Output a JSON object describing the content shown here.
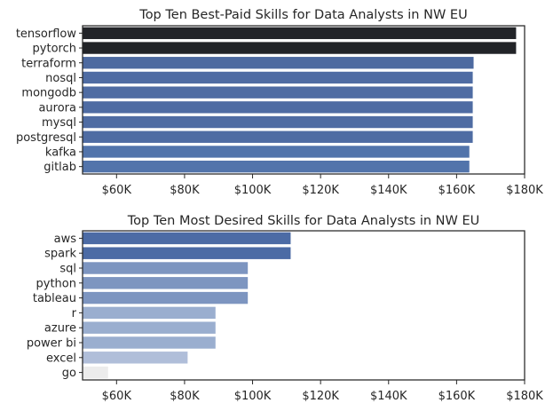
{
  "chart_data": [
    {
      "type": "bar",
      "orientation": "horizontal",
      "title": "Top Ten Best-Paid Skills for Data Analysts in NW EU",
      "xlabel": "",
      "ylabel": "",
      "xlim": [
        50000,
        180000
      ],
      "x_ticks": [
        {
          "value": 60000,
          "label": "$60K"
        },
        {
          "value": 80000,
          "label": "$80K"
        },
        {
          "value": 100000,
          "label": "$100K"
        },
        {
          "value": 120000,
          "label": "$120K"
        },
        {
          "value": 140000,
          "label": "$140K"
        },
        {
          "value": 160000,
          "label": "$160K"
        },
        {
          "value": 180000,
          "label": "$180K"
        }
      ],
      "categories": [
        "tensorflow",
        "pytorch",
        "terraform",
        "nosql",
        "mongodb",
        "aurora",
        "mysql",
        "postgresql",
        "kafka",
        "gitlab"
      ],
      "values": [
        177500,
        177500,
        165000,
        164750,
        164750,
        164750,
        164750,
        164750,
        163750,
        163750
      ],
      "colors": [
        "#222428",
        "#222428",
        "#4d6aa0",
        "#4f6ca3",
        "#4f6ca3",
        "#4f6ca3",
        "#4f6ca3",
        "#4f6ca3",
        "#5274ab",
        "#5274ab"
      ],
      "grid": false,
      "legend": "none"
    },
    {
      "type": "bar",
      "orientation": "horizontal",
      "title": "Top Ten Most Desired Skills for Data Analysts in NW EU",
      "xlabel": "",
      "ylabel": "",
      "xlim": [
        50000,
        180000
      ],
      "x_ticks": [
        {
          "value": 60000,
          "label": "$60K"
        },
        {
          "value": 80000,
          "label": "$80K"
        },
        {
          "value": 100000,
          "label": "$100K"
        },
        {
          "value": 120000,
          "label": "$120K"
        },
        {
          "value": 140000,
          "label": "$140K"
        },
        {
          "value": 160000,
          "label": "$160K"
        },
        {
          "value": 180000,
          "label": "$180K"
        }
      ],
      "categories": [
        "aws",
        "spark",
        "sql",
        "python",
        "tableau",
        "r",
        "azure",
        "power bi",
        "excel",
        "go"
      ],
      "values": [
        111200,
        111200,
        98600,
        98600,
        98600,
        89100,
        89100,
        89100,
        80900,
        57500
      ],
      "colors": [
        "#4c6ba5",
        "#4c6ba5",
        "#7d95c0",
        "#7d95c0",
        "#7d95c0",
        "#9aaecf",
        "#9aaecf",
        "#9aaecf",
        "#b0bed9",
        "#ececec"
      ],
      "grid": false,
      "legend": "none"
    }
  ]
}
